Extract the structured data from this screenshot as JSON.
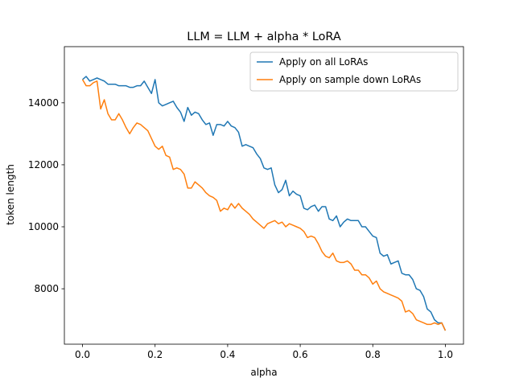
{
  "chart_data": {
    "type": "line",
    "title": "LLM = LLM + alpha * LoRA",
    "x_label": "alpha",
    "y_label": "token length",
    "x": [
      0,
      0.01,
      0.02,
      0.03,
      0.04,
      0.05,
      0.06,
      0.07,
      0.08,
      0.09,
      0.1,
      0.11,
      0.12,
      0.13,
      0.14,
      0.15,
      0.16,
      0.17,
      0.18,
      0.19,
      0.2,
      0.21,
      0.22,
      0.23,
      0.24,
      0.25,
      0.26,
      0.27,
      0.28,
      0.29,
      0.3,
      0.31,
      0.32,
      0.33,
      0.34,
      0.35,
      0.36,
      0.37,
      0.38,
      0.39,
      0.4,
      0.41,
      0.42,
      0.43,
      0.44,
      0.45,
      0.46,
      0.47,
      0.48,
      0.49,
      0.5,
      0.51,
      0.52,
      0.53,
      0.54,
      0.55,
      0.56,
      0.57,
      0.58,
      0.59,
      0.6,
      0.61,
      0.62,
      0.63,
      0.64,
      0.65,
      0.66,
      0.67,
      0.68,
      0.69,
      0.7,
      0.71,
      0.72,
      0.73,
      0.74,
      0.75,
      0.76,
      0.77,
      0.78,
      0.79,
      0.8,
      0.81,
      0.82,
      0.83,
      0.84,
      0.85,
      0.86,
      0.87,
      0.88,
      0.89,
      0.9,
      0.91,
      0.92,
      0.93,
      0.94,
      0.95,
      0.96,
      0.97,
      0.98,
      0.99,
      1
    ],
    "series": [
      {
        "name": "Apply on all LoRAs",
        "color": "#1f77b4",
        "values": [
          14750,
          14850,
          14700,
          14750,
          14800,
          14750,
          14700,
          14600,
          14600,
          14600,
          14550,
          14550,
          14550,
          14500,
          14500,
          14550,
          14550,
          14700,
          14500,
          14300,
          14750,
          14000,
          13900,
          13950,
          14000,
          14050,
          13850,
          13700,
          13400,
          13850,
          13600,
          13700,
          13650,
          13450,
          13300,
          13350,
          12950,
          13300,
          13300,
          13250,
          13400,
          13250,
          13200,
          13050,
          12600,
          12650,
          12600,
          12550,
          12350,
          12200,
          11900,
          11850,
          11900,
          11350,
          11100,
          11200,
          11500,
          11000,
          11150,
          11050,
          11000,
          10600,
          10550,
          10650,
          10700,
          10500,
          10650,
          10650,
          10250,
          10200,
          10350,
          10000,
          10150,
          10250,
          10200,
          10200,
          10200,
          10000,
          10000,
          9850,
          9700,
          9650,
          9150,
          9050,
          9100,
          8800,
          8850,
          8900,
          8500,
          8450,
          8450,
          8300,
          8000,
          7950,
          7750,
          7350,
          7250,
          7000,
          6900,
          6900,
          6650
        ]
      },
      {
        "name": "Apply on sample down LoRAs",
        "color": "#ff7f0e",
        "values": [
          14750,
          14550,
          14550,
          14650,
          14700,
          13800,
          14100,
          13650,
          13450,
          13450,
          13650,
          13450,
          13200,
          13000,
          13200,
          13350,
          13300,
          13200,
          13100,
          12850,
          12600,
          12500,
          12600,
          12300,
          12250,
          11850,
          11900,
          11850,
          11700,
          11250,
          11250,
          11450,
          11350,
          11250,
          11100,
          11000,
          10950,
          10850,
          10500,
          10600,
          10550,
          10750,
          10600,
          10750,
          10600,
          10500,
          10400,
          10250,
          10150,
          10050,
          9950,
          10100,
          10150,
          10200,
          10100,
          10150,
          10000,
          10100,
          10050,
          10000,
          9950,
          9850,
          9650,
          9700,
          9650,
          9450,
          9200,
          9050,
          9000,
          9150,
          8900,
          8850,
          8850,
          8900,
          8800,
          8600,
          8600,
          8450,
          8450,
          8350,
          8150,
          8250,
          8000,
          7900,
          7850,
          7800,
          7750,
          7700,
          7600,
          7250,
          7300,
          7200,
          7000,
          6950,
          6900,
          6850,
          6850,
          6900,
          6850,
          6900,
          6650
        ]
      }
    ],
    "xlim": [
      -0.05,
      1.05
    ],
    "ylim": [
      6212,
      15812
    ],
    "xticks": [
      {
        "value": 0,
        "label": "0.0"
      },
      0.2,
      0.4,
      0.6,
      0.8,
      {
        "value": 1,
        "label": "1.0"
      }
    ],
    "yticks": [
      8000,
      10000,
      12000,
      14000
    ],
    "grid": false,
    "legend": "upper right"
  }
}
